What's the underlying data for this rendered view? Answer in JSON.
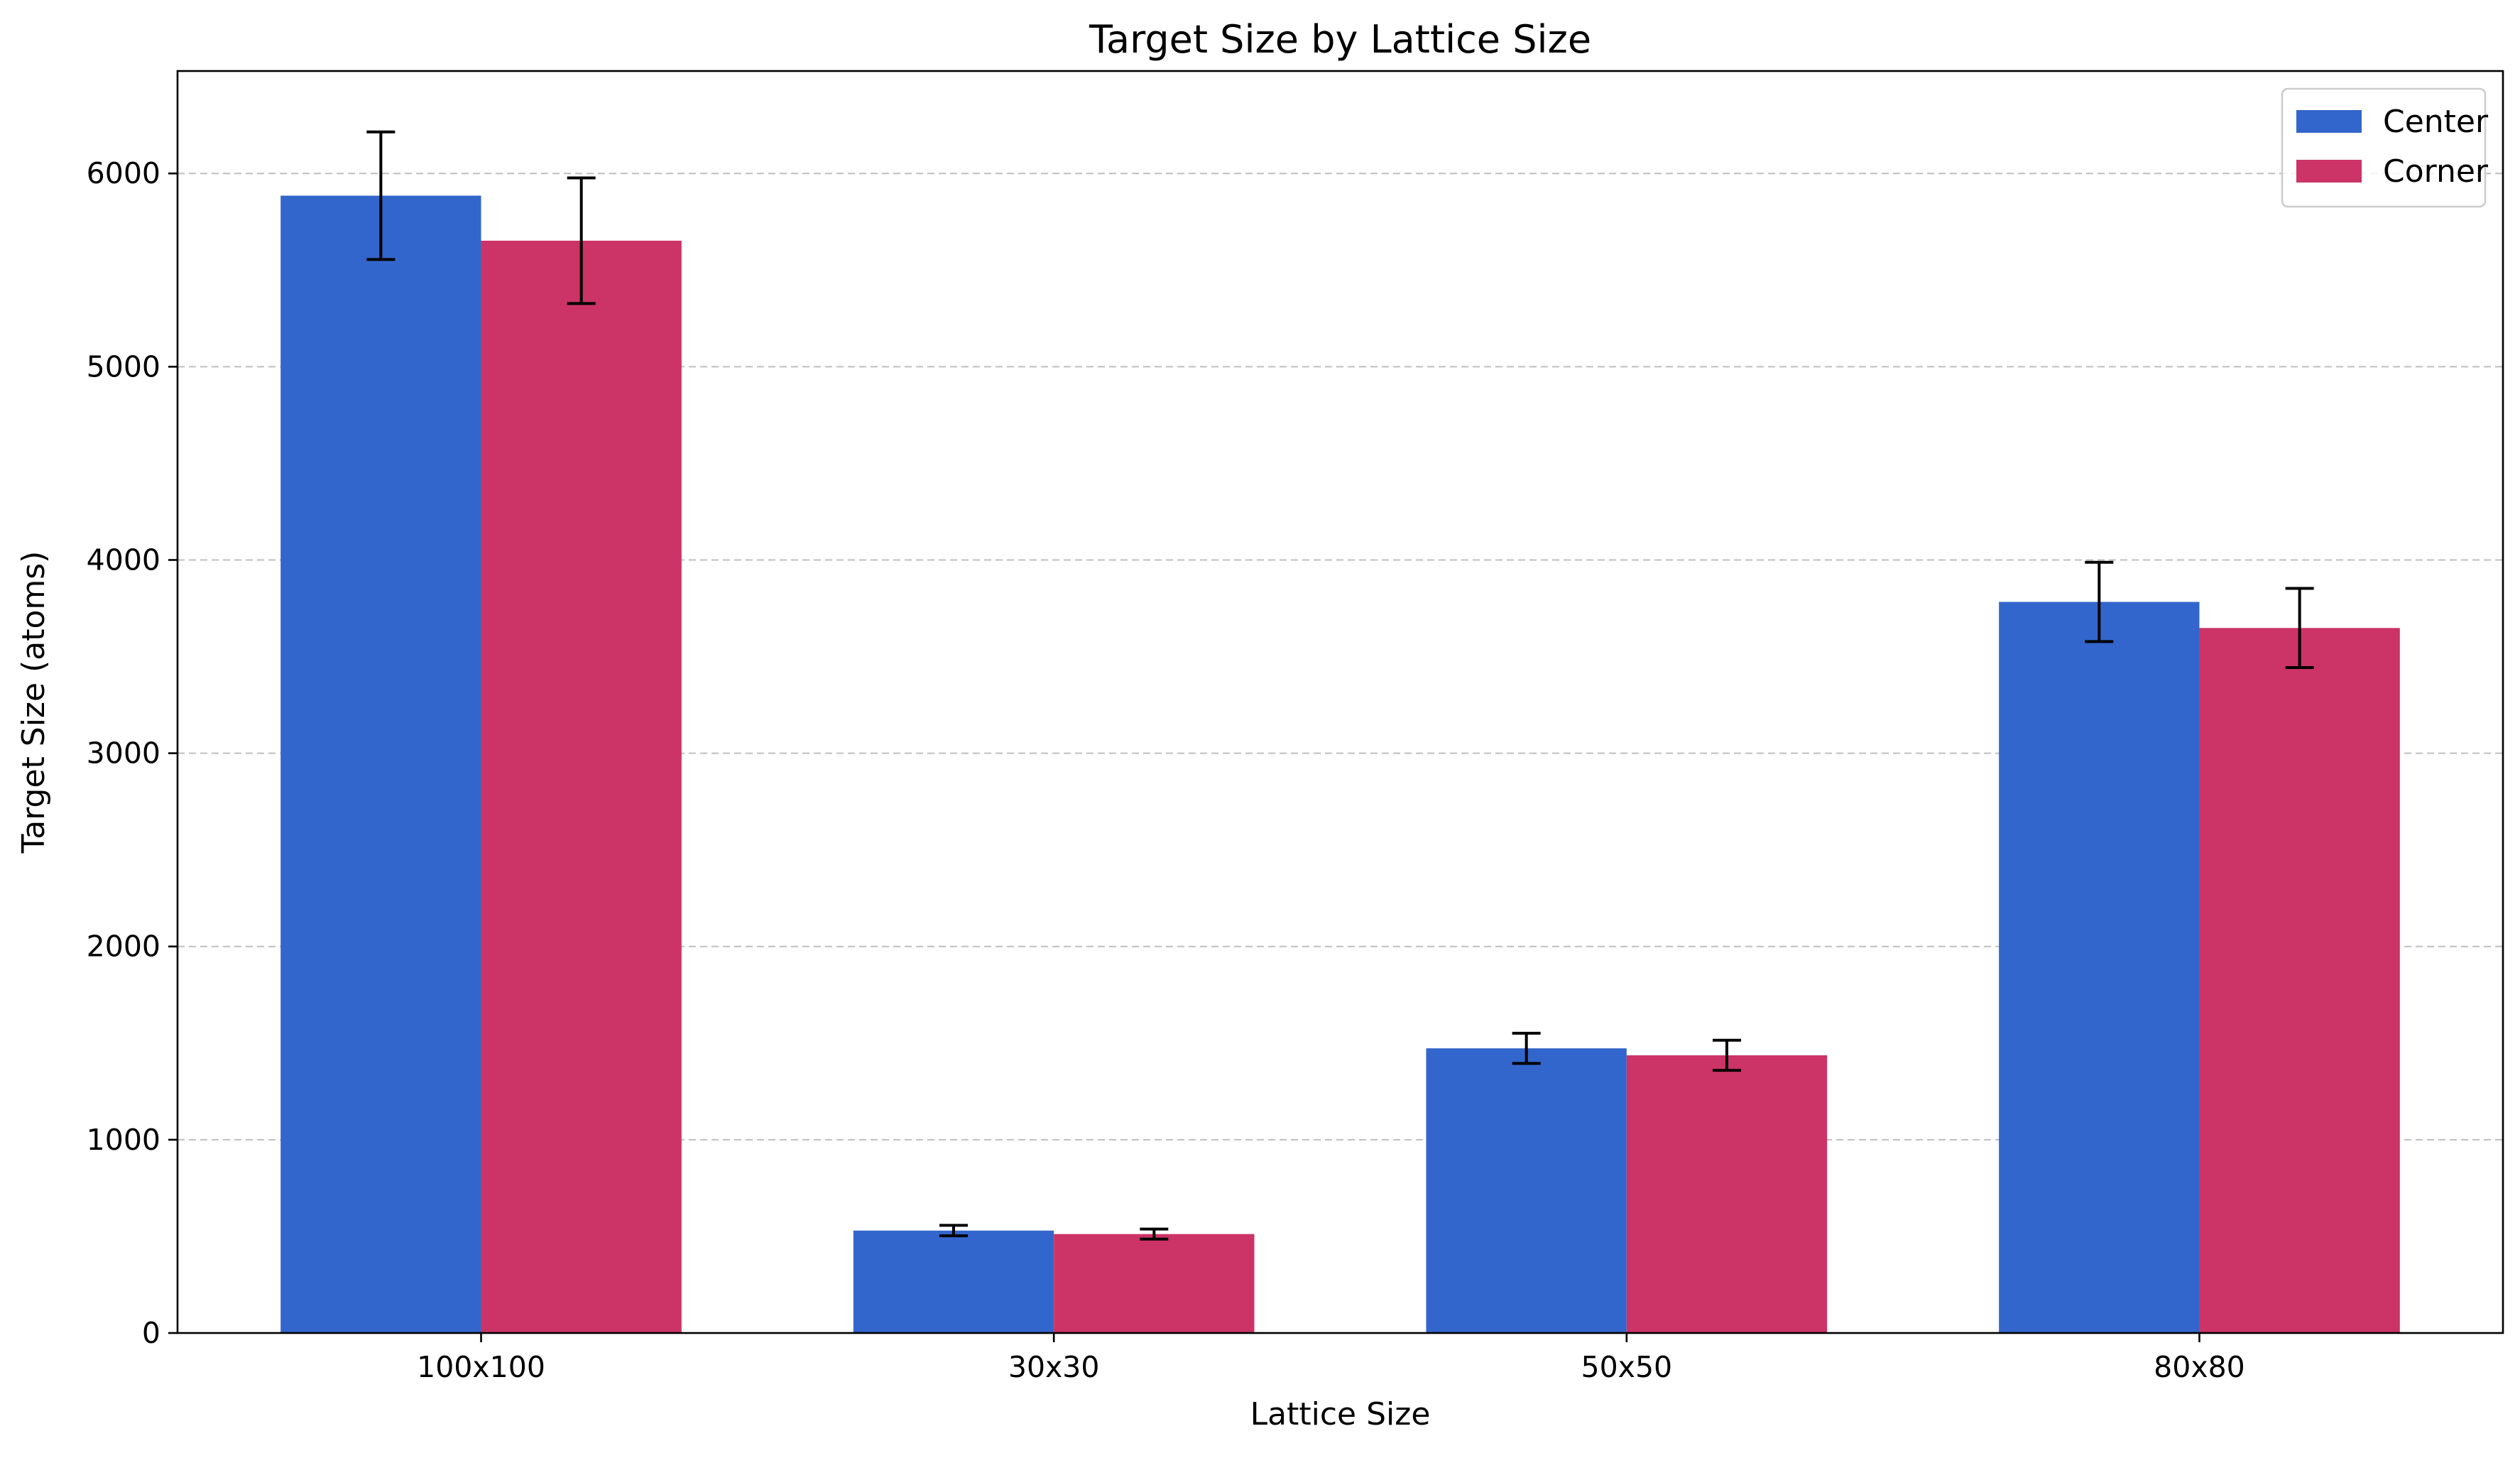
{
  "chart_data": {
    "type": "bar",
    "title": "Target Size by Lattice Size",
    "xlabel": "Lattice Size",
    "ylabel": "Target Size (atoms)",
    "categories": [
      "100x100",
      "30x30",
      "50x50",
      "80x80"
    ],
    "ylim": [
      0,
      6530
    ],
    "yticks": [
      0,
      1000,
      2000,
      3000,
      4000,
      5000,
      6000
    ],
    "grid": "y-dashed",
    "legend_position": "top-right",
    "series": [
      {
        "name": "Center",
        "color": "#3366cc",
        "values": [
          5885,
          530,
          1473,
          3783
        ],
        "errors": [
          330,
          27,
          78,
          205
        ]
      },
      {
        "name": "Corner",
        "color": "#cc3366",
        "values": [
          5652,
          512,
          1437,
          3648
        ],
        "errors": [
          325,
          26,
          78,
          205
        ]
      }
    ]
  }
}
